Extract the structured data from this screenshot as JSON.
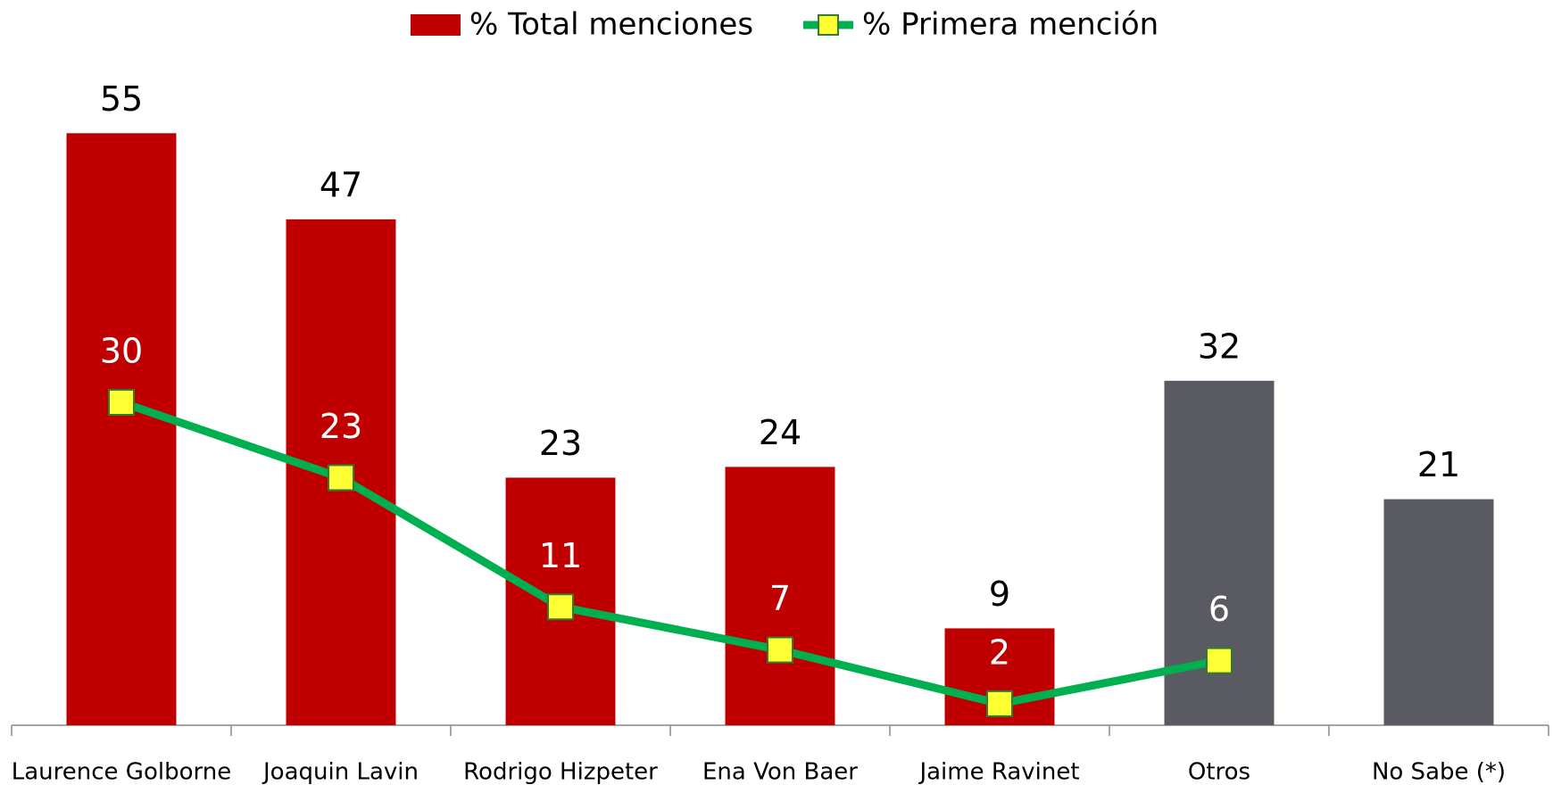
{
  "chart_data": {
    "type": "bar_line",
    "categories": [
      "Laurence Golborne",
      "Joaquin Lavin",
      "Rodrigo Hizpeter",
      "Ena Von Baer",
      "Jaime Ravinet",
      "Otros",
      "No Sabe (*)"
    ],
    "series": [
      {
        "name": "% Total menciones",
        "type": "bar",
        "color": "#c00000",
        "colors": [
          "#c00000",
          "#c00000",
          "#c00000",
          "#c00000",
          "#c00000",
          "#595a62",
          "#595a62"
        ],
        "values": [
          55,
          47,
          23,
          24,
          9,
          32,
          21
        ]
      },
      {
        "name": "% Primera mención",
        "type": "line",
        "color": "#00b050",
        "marker_color": "#ffff33",
        "values": [
          30,
          23,
          11,
          7,
          2,
          6,
          null
        ]
      }
    ],
    "ylim": [
      0,
      60
    ]
  }
}
